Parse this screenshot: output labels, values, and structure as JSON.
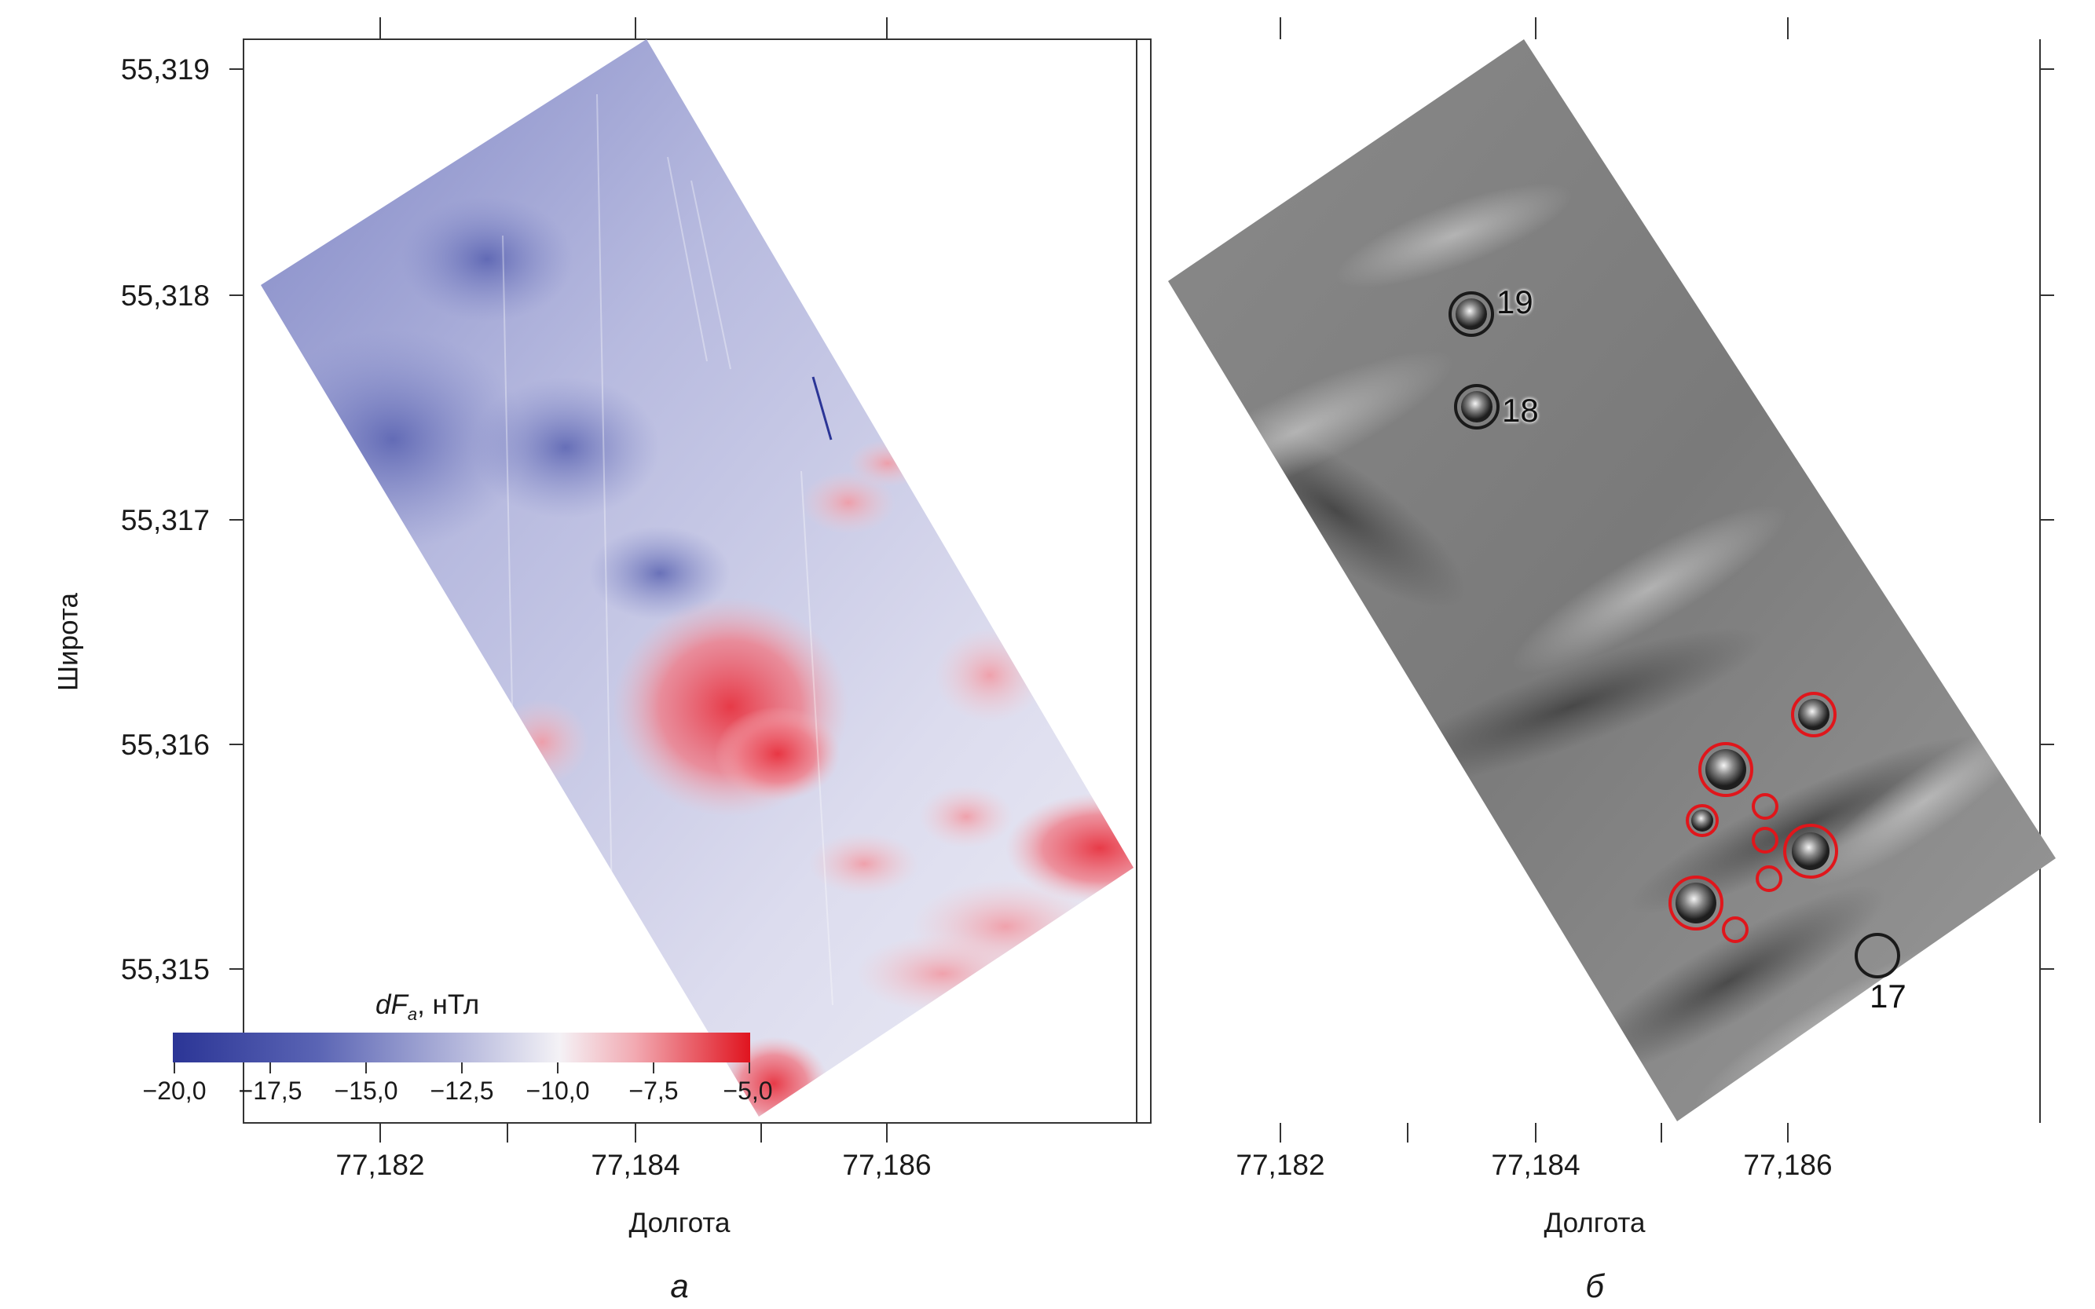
{
  "panels": {
    "a": {
      "letter": "а",
      "xlabel": "Долгота",
      "ylabel": "Широта",
      "xticks": [
        "77,182",
        "77,184",
        "77,186"
      ],
      "yticks": [
        "55,319",
        "55,318",
        "55,317",
        "55,316",
        "55,315"
      ],
      "map_type": "magnetic anomaly map",
      "colormap": {
        "low": "#2b3596",
        "mid": "#f2f0f6",
        "high": "#e0141f"
      }
    },
    "b": {
      "letter": "б",
      "xlabel": "Долгота",
      "xticks": [
        "77,182",
        "77,184",
        "77,186"
      ],
      "map_type": "shaded-relief grayscale map",
      "anomaly_labels": [
        "19",
        "18",
        "17"
      ],
      "marker_colors": {
        "labeled": "#1a1a1a",
        "highlighted": "#e0161b"
      }
    }
  },
  "legend": {
    "title_main": "dF",
    "title_sub": "a",
    "title_unit": ", нТл",
    "ticks": [
      "−20,0",
      "−17,5",
      "−15,0",
      "−12,5",
      "−10,0",
      "−7,5",
      "−5,0"
    ],
    "range": [
      -20.0,
      -5.0
    ]
  }
}
